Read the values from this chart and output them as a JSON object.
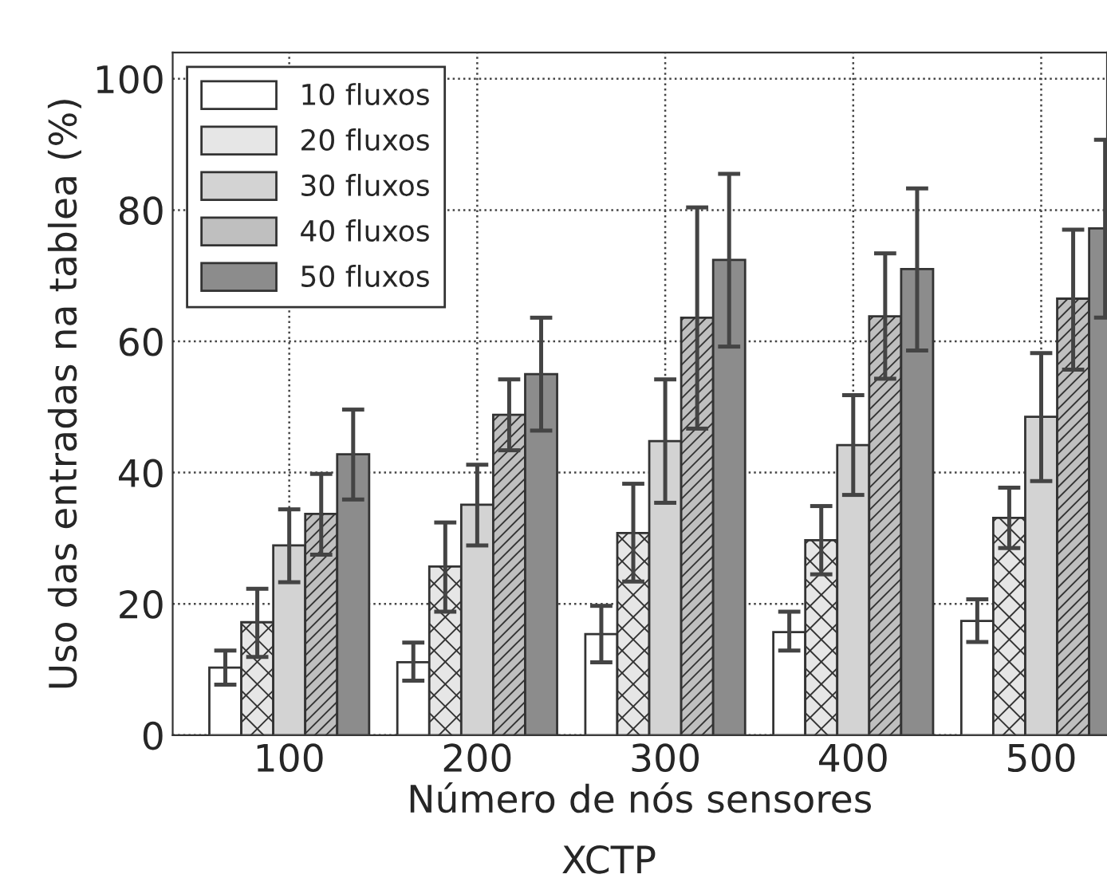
{
  "chart_data": {
    "type": "bar",
    "title": "XCTP",
    "xlabel": "Número de nós sensores",
    "ylabel": "Uso das entradas na tablea (%)",
    "categories": [
      "100",
      "200",
      "300",
      "400",
      "500"
    ],
    "series": [
      {
        "name": "10 fluxos",
        "color": "#ffffff",
        "values": [
          10.3,
          11.1,
          15.4,
          15.7,
          17.4
        ],
        "errors": [
          [
            7.7,
            12.9
          ],
          [
            8.3,
            14.1
          ],
          [
            11.1,
            19.7
          ],
          [
            12.9,
            18.8
          ],
          [
            14.2,
            20.7
          ]
        ]
      },
      {
        "name": "20 fluxos",
        "color": "#e6e6e6",
        "values": [
          17.2,
          25.7,
          30.8,
          29.7,
          33.1
        ],
        "errors": [
          [
            11.9,
            22.3
          ],
          [
            18.8,
            32.4
          ],
          [
            23.4,
            38.3
          ],
          [
            24.5,
            34.9
          ],
          [
            28.5,
            37.7
          ]
        ]
      },
      {
        "name": "30 fluxos",
        "color": "#d3d3d3",
        "values": [
          28.9,
          35.1,
          44.8,
          44.2,
          48.5
        ],
        "errors": [
          [
            23.3,
            34.4
          ],
          [
            28.9,
            41.2
          ],
          [
            35.4,
            54.2
          ],
          [
            36.6,
            51.8
          ],
          [
            38.7,
            58.2
          ]
        ]
      },
      {
        "name": "40 fluxos",
        "color": "#bfbfbf",
        "values": [
          33.7,
          48.8,
          63.6,
          63.8,
          66.5
        ],
        "errors": [
          [
            27.5,
            39.8
          ],
          [
            43.4,
            54.2
          ],
          [
            46.7,
            80.4
          ],
          [
            54.3,
            73.4
          ],
          [
            55.7,
            77.0
          ]
        ]
      },
      {
        "name": "50 fluxos",
        "color": "#8c8c8c",
        "values": [
          42.8,
          55.0,
          72.4,
          71.0,
          77.2
        ],
        "errors": [
          [
            35.9,
            49.6
          ],
          [
            46.4,
            63.6
          ],
          [
            59.2,
            85.5
          ],
          [
            58.6,
            83.3
          ],
          [
            63.6,
            90.7
          ]
        ]
      }
    ],
    "ylim": [
      0,
      104
    ],
    "yticks": [
      0,
      20,
      40,
      60,
      80,
      100
    ],
    "grid": true,
    "legend": "top left"
  }
}
